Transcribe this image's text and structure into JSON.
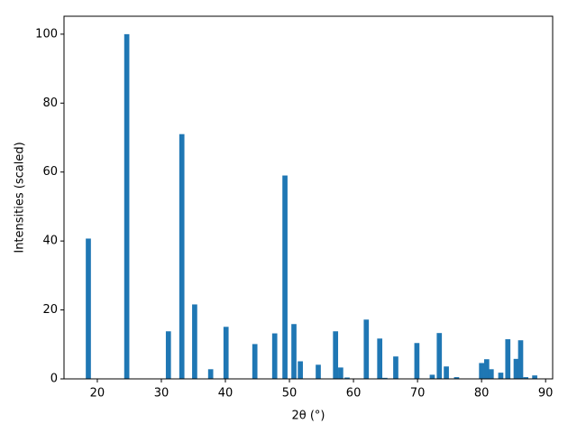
{
  "chart_data": {
    "type": "bar",
    "xlabel": "2θ (°)",
    "ylabel": "Intensities (scaled)",
    "x": [
      18.6,
      24.6,
      31.1,
      33.2,
      35.2,
      37.7,
      40.1,
      44.6,
      47.7,
      49.3,
      50.7,
      51.7,
      54.5,
      57.2,
      58.0,
      59.0,
      62.0,
      64.1,
      64.9,
      66.6,
      69.9,
      72.3,
      73.4,
      74.5,
      76.1,
      80.0,
      80.8,
      81.5,
      83.0,
      84.1,
      85.4,
      86.1,
      86.9,
      88.3
    ],
    "values": [
      40.7,
      100,
      13.8,
      71,
      21.6,
      2.8,
      15.1,
      10.1,
      13.2,
      59,
      15.9,
      5.1,
      4.1,
      13.8,
      3.3,
      0.4,
      17.2,
      11.7,
      0.3,
      6.5,
      10.4,
      1.2,
      13.3,
      3.6,
      0.5,
      4.6,
      5.7,
      2.8,
      1.8,
      11.5,
      5.8,
      11.2,
      0.5,
      1.0
    ],
    "color": "#1f77b4",
    "xlim": [
      14.8,
      91.1
    ],
    "xticks": [
      20,
      30,
      40,
      50,
      60,
      70,
      80,
      90
    ],
    "ylim": [
      0,
      105.2
    ],
    "yticks": [
      0,
      20,
      40,
      60,
      80,
      100
    ]
  }
}
